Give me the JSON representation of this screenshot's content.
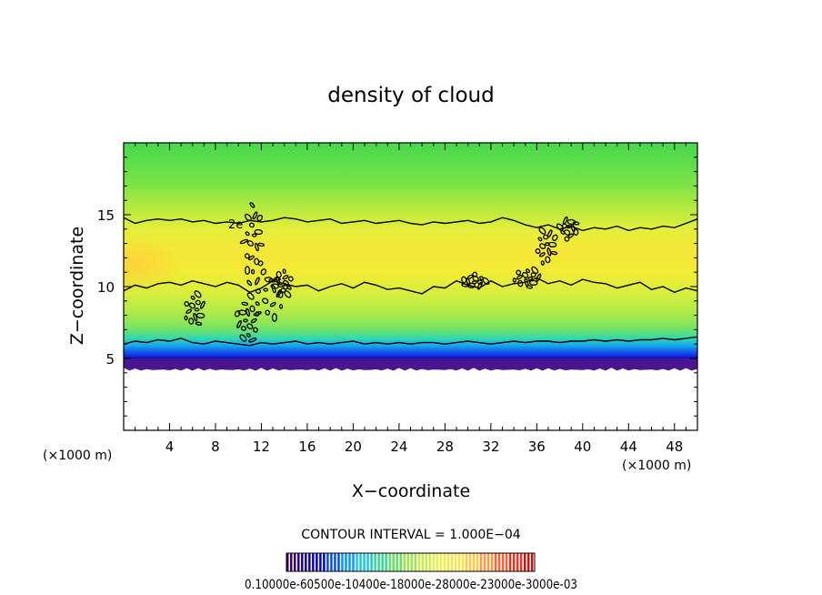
{
  "chart_data": {
    "type": "heatmap",
    "title": "density of cloud",
    "xlabel": "X−coordinate",
    "ylabel": "Z−coordinate",
    "x_unit": "(×1000 m)",
    "z_unit": "(×1000 m)",
    "xlim": [
      0,
      50
    ],
    "ylim": [
      0,
      20
    ],
    "x_ticks": [
      4,
      8,
      12,
      16,
      20,
      24,
      28,
      32,
      36,
      40,
      44,
      48
    ],
    "y_ticks": [
      5,
      10,
      15
    ],
    "contour_interval_text": "CONTOUR INTERVAL = 1.000E−04",
    "contour_label": "2e",
    "colorbar_labels_text": "0.10000e-60500e-10400e-18000e-28000e-23000e-3000e-03",
    "colorbar_colors": [
      "#3c0060",
      "#1a0090",
      "#0000c8",
      "#0050e6",
      "#0096ff",
      "#18c8d8",
      "#30d890",
      "#60e060",
      "#98e84a",
      "#c8ee44",
      "#e8f040",
      "#f8e440",
      "#ffc840",
      "#ff9840",
      "#ff6030",
      "#f03020",
      "#d01010"
    ],
    "field": {
      "cloud_base_z": 4.6,
      "cloud_top_z": 20,
      "profile": [
        {
          "z": 4.4,
          "color": "#6a1a9a"
        },
        {
          "z": 4.8,
          "color": "#2a0fa0"
        },
        {
          "z": 5.0,
          "color": "#0a10c8"
        },
        {
          "z": 5.4,
          "color": "#1050e6"
        },
        {
          "z": 5.9,
          "color": "#18a8f0"
        },
        {
          "z": 6.4,
          "color": "#30d8b0"
        },
        {
          "z": 7.0,
          "color": "#70e26a"
        },
        {
          "z": 8.0,
          "color": "#a8e94a"
        },
        {
          "z": 9.5,
          "color": "#d8ee3e"
        },
        {
          "z": 11.0,
          "color": "#f2ec34"
        },
        {
          "z": 12.5,
          "color": "#f6e838"
        },
        {
          "z": 14.0,
          "color": "#e4ee3a"
        },
        {
          "z": 15.5,
          "color": "#b4ea40"
        },
        {
          "z": 17.0,
          "color": "#80e446"
        },
        {
          "z": 18.5,
          "color": "#60de4a"
        },
        {
          "z": 20.0,
          "color": "#48d84c"
        }
      ],
      "warm_patch": {
        "x": 0.5,
        "z": 11.5,
        "color": "#ffc840"
      }
    },
    "contours": [
      {
        "name": "contour-upper",
        "x": [
          0,
          1,
          2,
          3,
          4,
          5,
          6,
          7,
          8,
          9,
          10,
          11,
          12,
          13,
          14,
          15,
          16,
          17,
          18,
          19,
          20,
          21,
          22,
          23,
          24,
          25,
          26,
          27,
          28,
          29,
          30,
          31,
          32,
          33,
          34,
          35,
          36,
          37,
          38,
          39,
          40,
          41,
          42,
          43,
          44,
          45,
          46,
          47,
          48,
          49,
          50
        ],
        "z": [
          14.8,
          14.4,
          14.6,
          14.7,
          14.6,
          14.7,
          14.5,
          14.6,
          14.4,
          14.5,
          14.4,
          14.6,
          14.5,
          14.6,
          14.8,
          14.7,
          14.5,
          14.6,
          14.7,
          14.4,
          14.5,
          14.6,
          14.4,
          14.5,
          14.6,
          14.4,
          14.3,
          14.5,
          14.4,
          14.5,
          14.6,
          14.4,
          14.5,
          14.8,
          14.6,
          14.3,
          14.1,
          14.3,
          14.0,
          14.2,
          13.9,
          14.1,
          14.0,
          14.2,
          13.9,
          14.1,
          14.0,
          14.2,
          14.1,
          14.4,
          14.7
        ]
      },
      {
        "name": "contour-middle",
        "x": [
          0,
          1,
          2,
          3,
          4,
          5,
          6,
          7,
          8,
          9,
          10,
          11,
          12,
          13,
          14,
          15,
          16,
          17,
          18,
          19,
          20,
          21,
          22,
          23,
          24,
          25,
          26,
          27,
          28,
          29,
          30,
          31,
          32,
          33,
          34,
          35,
          36,
          37,
          38,
          39,
          40,
          41,
          42,
          43,
          44,
          45,
          46,
          47,
          48,
          49,
          50
        ],
        "z": [
          9.7,
          10.1,
          9.9,
          10.2,
          10.3,
          10.1,
          10.4,
          10.2,
          10.0,
          10.3,
          10.1,
          9.6,
          9.9,
          10.4,
          10.2,
          10.0,
          10.1,
          9.7,
          10.0,
          10.2,
          9.9,
          10.3,
          10.1,
          9.8,
          9.9,
          9.7,
          9.5,
          10.0,
          9.9,
          10.4,
          10.1,
          9.9,
          10.4,
          10.0,
          10.2,
          10.3,
          10.6,
          10.2,
          10.4,
          10.1,
          10.5,
          10.3,
          10.2,
          9.9,
          10.1,
          10.3,
          9.8,
          10.0,
          9.6,
          9.9,
          9.7
        ]
      },
      {
        "name": "contour-lower",
        "x": [
          0,
          1,
          2,
          3,
          4,
          5,
          6,
          7,
          8,
          9,
          10,
          11,
          12,
          13,
          14,
          15,
          16,
          17,
          18,
          19,
          20,
          21,
          22,
          23,
          24,
          25,
          26,
          27,
          28,
          29,
          30,
          31,
          32,
          33,
          34,
          35,
          36,
          37,
          38,
          39,
          40,
          41,
          42,
          43,
          44,
          45,
          46,
          47,
          48,
          49,
          50
        ],
        "z": [
          6.0,
          6.2,
          6.1,
          6.3,
          6.2,
          6.4,
          6.1,
          6.0,
          6.2,
          6.1,
          6.0,
          5.9,
          6.1,
          6.0,
          6.1,
          6.2,
          6.0,
          6.1,
          6.0,
          6.1,
          6.2,
          6.0,
          6.1,
          6.0,
          6.1,
          6.0,
          6.1,
          6.1,
          6.0,
          6.1,
          6.2,
          6.1,
          6.0,
          6.1,
          6.2,
          6.1,
          6.2,
          6.2,
          6.1,
          6.2,
          6.2,
          6.3,
          6.2,
          6.3,
          6.2,
          6.3,
          6.3,
          6.4,
          6.3,
          6.4,
          6.5
        ]
      }
    ],
    "cells": [
      {
        "x": 6.2,
        "z": 8.4,
        "rx": 0.9,
        "rz": 1.2
      },
      {
        "x": 11.3,
        "z": 13.2,
        "rx": 0.9,
        "rz": 2.6
      },
      {
        "x": 12.5,
        "z": 9.5,
        "rx": 1.8,
        "rz": 1.8
      },
      {
        "x": 10.8,
        "z": 7.6,
        "rx": 1.0,
        "rz": 1.5
      },
      {
        "x": 13.8,
        "z": 10.2,
        "rx": 1.0,
        "rz": 0.9
      },
      {
        "x": 30.5,
        "z": 10.4,
        "rx": 1.1,
        "rz": 0.5
      },
      {
        "x": 35.2,
        "z": 10.6,
        "rx": 1.2,
        "rz": 0.7
      },
      {
        "x": 36.8,
        "z": 12.8,
        "rx": 0.9,
        "rz": 1.3
      },
      {
        "x": 38.8,
        "z": 14.0,
        "rx": 0.8,
        "rz": 0.8
      }
    ]
  }
}
